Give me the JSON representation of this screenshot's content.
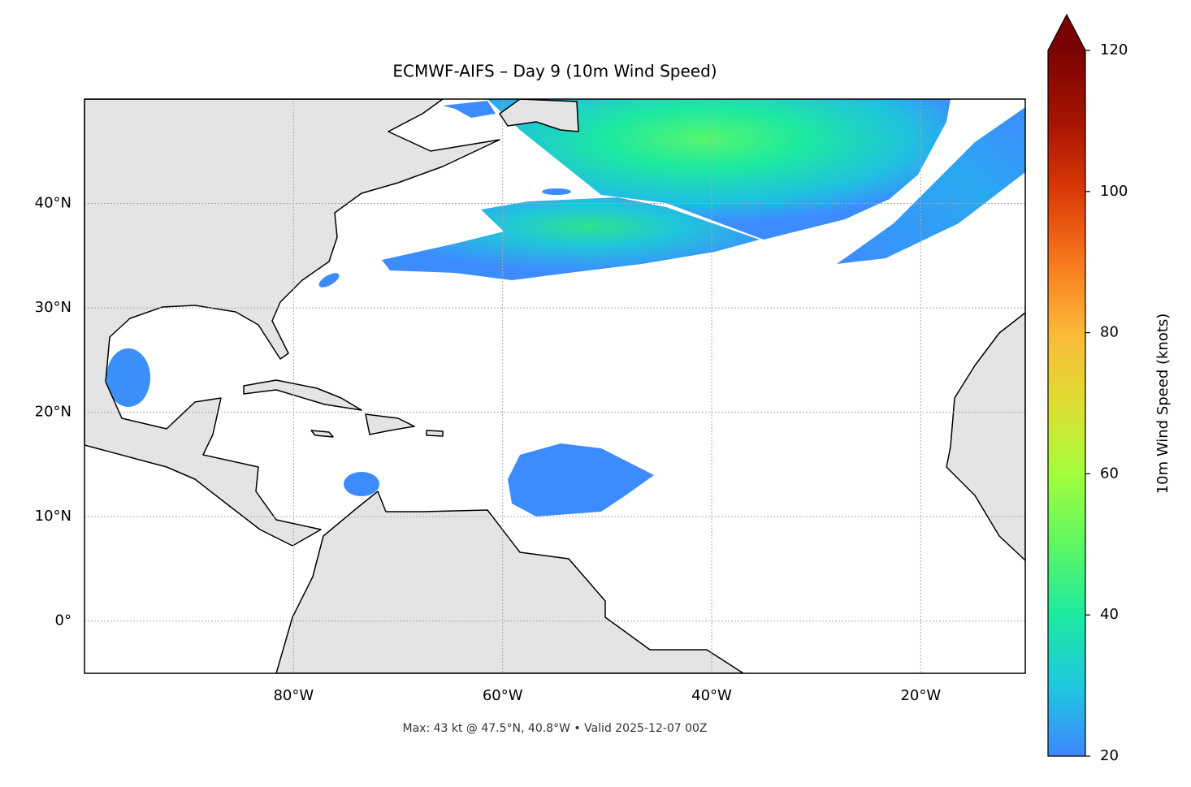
{
  "chart_data": {
    "type": "map",
    "title": "ECMWF-AIFS – Day 9 (10m Wind Speed)",
    "xlim": [
      -100,
      -10
    ],
    "ylim": [
      -5,
      50
    ],
    "xticks": [
      {
        "value": -80,
        "label": "80°W"
      },
      {
        "value": -60,
        "label": "60°W"
      },
      {
        "value": -40,
        "label": "40°W"
      },
      {
        "value": -20,
        "label": "20°W"
      }
    ],
    "yticks": [
      {
        "value": 0,
        "label": "0°"
      },
      {
        "value": 10,
        "label": "10°N"
      },
      {
        "value": 20,
        "label": "20°N"
      },
      {
        "value": 30,
        "label": "30°N"
      },
      {
        "value": 40,
        "label": "40°N"
      }
    ],
    "grid": true,
    "colorbar": {
      "label": "10m Wind Speed (knots)",
      "lim": [
        20,
        120
      ],
      "ticks": [
        20,
        40,
        60,
        80,
        100,
        120
      ],
      "extend": "max",
      "colormap": [
        "#3d87ff",
        "#1fc8de",
        "#1de9a0",
        "#5ef762",
        "#a3fd3c",
        "#dedd32",
        "#fbb938",
        "#f8781d",
        "#db3a07",
        "#a51301",
        "#7a0403"
      ]
    },
    "annotation": "Max: 43 kt @ 47.5°N, 40.8°W • Valid 2025-12-07 00Z"
  }
}
